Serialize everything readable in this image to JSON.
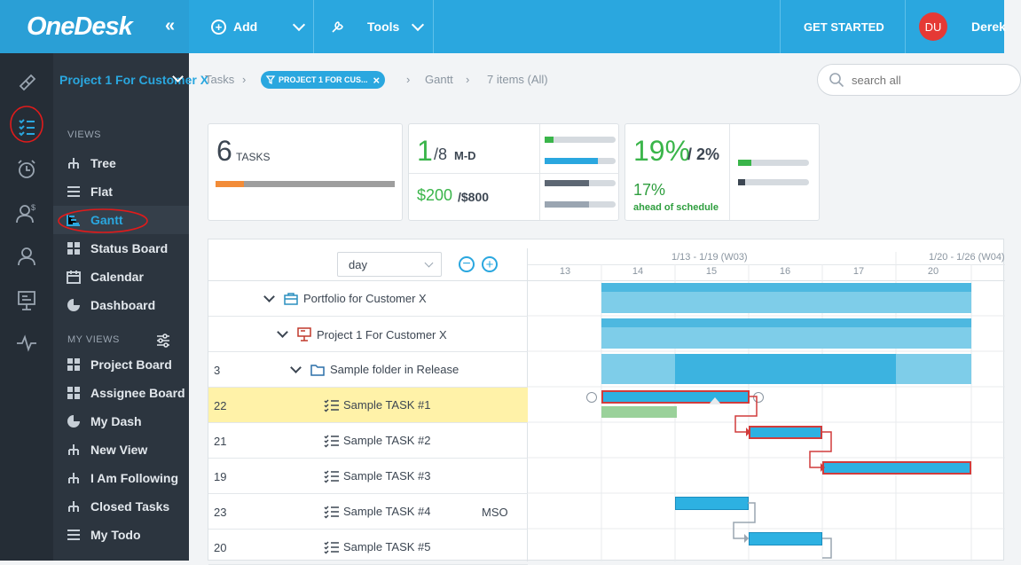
{
  "app": {
    "logo": "OneDesk",
    "collapse": "«"
  },
  "topbar": {
    "add_label": "Add",
    "tools_label": "Tools",
    "get_started": "GET STARTED",
    "avatar_initials": "DU",
    "user_name": "Derek"
  },
  "project_selector": "Project 1 For Customer X",
  "sidebar": {
    "views_header": "VIEWS",
    "views": [
      {
        "label": "Tree",
        "icon": "tree-icon"
      },
      {
        "label": "Flat",
        "icon": "flat-list-icon"
      },
      {
        "label": "Gantt",
        "icon": "gantt-icon"
      },
      {
        "label": "Status Board",
        "icon": "board-icon"
      },
      {
        "label": "Calendar",
        "icon": "calendar-icon"
      },
      {
        "label": "Dashboard",
        "icon": "dashboard-icon"
      }
    ],
    "my_views_header": "MY VIEWS",
    "my_views": [
      {
        "label": "Project Board"
      },
      {
        "label": "Assignee Board"
      },
      {
        "label": "My Dash"
      },
      {
        "label": "New View"
      },
      {
        "label": "I Am Following"
      },
      {
        "label": "Closed Tasks"
      },
      {
        "label": "My Todo"
      }
    ]
  },
  "breadcrumb": {
    "tasks": "Tasks",
    "filter": "PROJECT 1 FOR CUS...",
    "gantt": "Gantt",
    "count": "7 items (All)"
  },
  "search": {
    "placeholder": "search all"
  },
  "summary": {
    "tasks_count": "6",
    "tasks_label": "TASKS",
    "md_value": "1",
    "md_total": "/8",
    "md_unit": "M-D",
    "cost_value": "$200",
    "cost_total": "/$800",
    "pct_value": "19%",
    "pct_total": "/ 2%",
    "ahead_value": "17%",
    "ahead_label": "ahead of schedule"
  },
  "gantt": {
    "zoom": "day",
    "week1": "1/13 - 1/19 (W03)",
    "week2": "1/20 - 1/26 (W04)",
    "days": [
      "13",
      "14",
      "15",
      "16",
      "17",
      "20"
    ],
    "rows": [
      {
        "id": "",
        "label": "Portfolio for Customer X",
        "type": "portfolio",
        "extra": ""
      },
      {
        "id": "",
        "label": "Project 1 For Customer X",
        "type": "project",
        "extra": ""
      },
      {
        "id": "3",
        "label": "Sample folder in Release",
        "type": "folder",
        "extra": ""
      },
      {
        "id": "22",
        "label": "Sample TASK #1",
        "type": "task",
        "extra": ""
      },
      {
        "id": "21",
        "label": "Sample TASK #2",
        "type": "task",
        "extra": ""
      },
      {
        "id": "19",
        "label": "Sample TASK #3",
        "type": "task",
        "extra": ""
      },
      {
        "id": "23",
        "label": "Sample TASK #4",
        "type": "task",
        "extra": "MSO"
      },
      {
        "id": "20",
        "label": "Sample TASK #5",
        "type": "task",
        "extra": ""
      }
    ]
  },
  "colors": {
    "accent": "#2aa7df",
    "green": "#3ab54a",
    "orange": "#f28c38",
    "critical": "#d13c3c"
  }
}
